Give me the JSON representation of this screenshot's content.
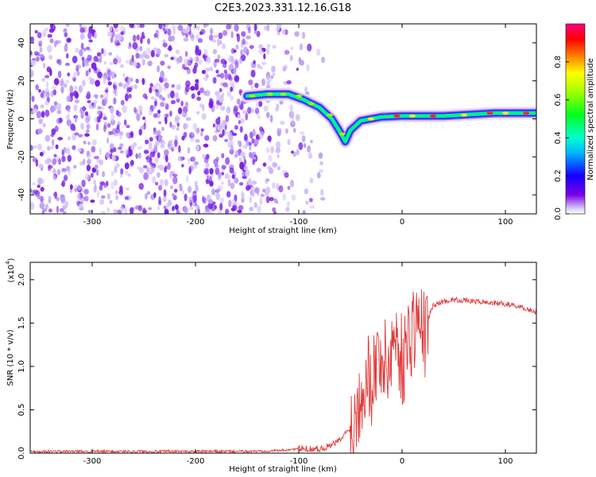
{
  "figure": {
    "title": "C2E3.2023.331.12.16.G18"
  },
  "chart_data": [
    {
      "type": "heatmap",
      "title": "C2E3.2023.331.12.16.G18",
      "xlabel": "Height of straight line (km)",
      "ylabel": "Frequency (Hz)",
      "xlim": [
        -360,
        130
      ],
      "ylim": [
        -50,
        50
      ],
      "x_ticks": [
        -300,
        -200,
        -100,
        0,
        100
      ],
      "y_ticks": [
        -40,
        -20,
        0,
        20,
        40
      ],
      "x_tick_labels": [
        "-300",
        "-200",
        "-100",
        "0",
        "100"
      ],
      "y_tick_labels": [
        "-40",
        "-20",
        "0",
        "20",
        "40"
      ],
      "colorbar": {
        "label": "Normalized spectral amplitude",
        "range": [
          0,
          1
        ],
        "ticks": [
          0.0,
          0.2,
          0.4,
          0.6,
          0.8
        ],
        "tick_labels": [
          "0.0",
          "0.2",
          "0.4",
          "0.6",
          "0.8"
        ],
        "colormap": "rainbow (white-violet-blue-cyan-green-yellow-red-magenta)"
      },
      "features": {
        "noise_region_x": [
          -360,
          -95
        ],
        "signal_ridge": [
          {
            "x": -150,
            "y": 12
          },
          {
            "x": -130,
            "y": 13
          },
          {
            "x": -110,
            "y": 13
          },
          {
            "x": -95,
            "y": 10
          },
          {
            "x": -80,
            "y": 6
          },
          {
            "x": -68,
            "y": 0
          },
          {
            "x": -60,
            "y": -7
          },
          {
            "x": -55,
            "y": -12
          },
          {
            "x": -50,
            "y": -6
          },
          {
            "x": -40,
            "y": -1
          },
          {
            "x": -20,
            "y": 1
          },
          {
            "x": 0,
            "y": 1.5
          },
          {
            "x": 40,
            "y": 1.5
          },
          {
            "x": 90,
            "y": 3
          },
          {
            "x": 130,
            "y": 3
          }
        ]
      }
    },
    {
      "type": "line",
      "xlabel": "Height of straight line (km)",
      "ylabel": "SNR (10 * v/v)",
      "y_multiplier": "(x10",
      "y_multiplier_exp": "4",
      "y_multiplier_close": ")",
      "xlim": [
        -360,
        130
      ],
      "ylim": [
        0,
        2.2
      ],
      "x_ticks": [
        -300,
        -200,
        -100,
        0,
        100
      ],
      "y_ticks": [
        0.0,
        0.5,
        1.0,
        1.5,
        2.0
      ],
      "x_tick_labels": [
        "-300",
        "-200",
        "-100",
        "0",
        "100"
      ],
      "y_tick_labels": [
        "0.0",
        "0.5",
        "1.0",
        "1.5",
        "2.0"
      ],
      "color": "#e03a3a",
      "series": [
        {
          "x": [
            -360,
            -300,
            -250,
            -200,
            -150,
            -120,
            -100,
            -80,
            -70,
            -60,
            -50,
            -45,
            -40,
            -35,
            -30,
            -25,
            -20,
            -15,
            -10,
            -5,
            0,
            5,
            10,
            15,
            20,
            25,
            30,
            40,
            50,
            60,
            70,
            80,
            90,
            100,
            110,
            120,
            130
          ],
          "values": [
            0.02,
            0.02,
            0.02,
            0.02,
            0.02,
            0.03,
            0.05,
            0.05,
            0.08,
            0.15,
            0.3,
            0.5,
            0.8,
            1.0,
            0.9,
            1.1,
            1.2,
            1.0,
            1.3,
            1.4,
            1.1,
            1.3,
            1.5,
            1.6,
            1.4,
            1.55,
            1.7,
            1.75,
            1.77,
            1.76,
            1.75,
            1.74,
            1.73,
            1.72,
            1.7,
            1.67,
            1.62
          ]
        }
      ]
    }
  ]
}
